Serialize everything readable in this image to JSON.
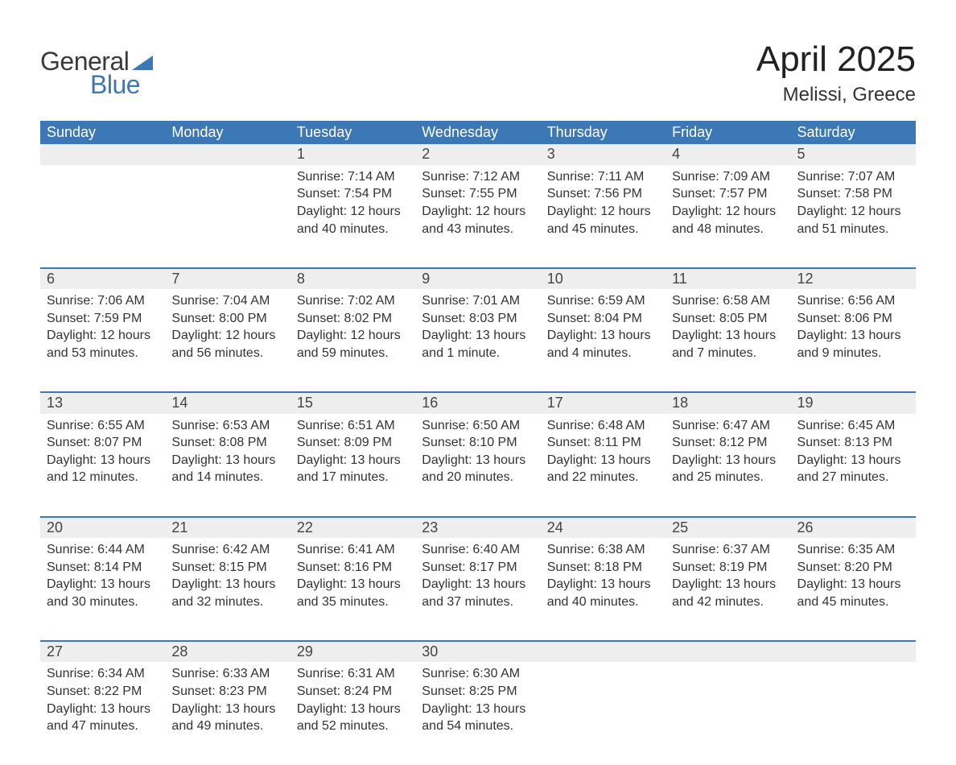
{
  "brand": {
    "word1": "General",
    "word2": "Blue"
  },
  "title": "April 2025",
  "location": "Melissi, Greece",
  "colors": {
    "header_bg": "#3b78b5",
    "header_text": "#ffffff",
    "daynum_bg": "#eeeeee",
    "divider": "#3b78b5",
    "body_text": "#333333",
    "page_bg": "#ffffff"
  },
  "typography": {
    "title_fontsize": 44,
    "location_fontsize": 24,
    "header_fontsize": 18,
    "daynum_fontsize": 18,
    "cell_fontsize": 16
  },
  "day_headers": [
    "Sunday",
    "Monday",
    "Tuesday",
    "Wednesday",
    "Thursday",
    "Friday",
    "Saturday"
  ],
  "weeks": [
    [
      null,
      null,
      {
        "n": "1",
        "sunrise": "Sunrise: 7:14 AM",
        "sunset": "Sunset: 7:54 PM",
        "daylight": "Daylight: 12 hours and 40 minutes."
      },
      {
        "n": "2",
        "sunrise": "Sunrise: 7:12 AM",
        "sunset": "Sunset: 7:55 PM",
        "daylight": "Daylight: 12 hours and 43 minutes."
      },
      {
        "n": "3",
        "sunrise": "Sunrise: 7:11 AM",
        "sunset": "Sunset: 7:56 PM",
        "daylight": "Daylight: 12 hours and 45 minutes."
      },
      {
        "n": "4",
        "sunrise": "Sunrise: 7:09 AM",
        "sunset": "Sunset: 7:57 PM",
        "daylight": "Daylight: 12 hours and 48 minutes."
      },
      {
        "n": "5",
        "sunrise": "Sunrise: 7:07 AM",
        "sunset": "Sunset: 7:58 PM",
        "daylight": "Daylight: 12 hours and 51 minutes."
      }
    ],
    [
      {
        "n": "6",
        "sunrise": "Sunrise: 7:06 AM",
        "sunset": "Sunset: 7:59 PM",
        "daylight": "Daylight: 12 hours and 53 minutes."
      },
      {
        "n": "7",
        "sunrise": "Sunrise: 7:04 AM",
        "sunset": "Sunset: 8:00 PM",
        "daylight": "Daylight: 12 hours and 56 minutes."
      },
      {
        "n": "8",
        "sunrise": "Sunrise: 7:02 AM",
        "sunset": "Sunset: 8:02 PM",
        "daylight": "Daylight: 12 hours and 59 minutes."
      },
      {
        "n": "9",
        "sunrise": "Sunrise: 7:01 AM",
        "sunset": "Sunset: 8:03 PM",
        "daylight": "Daylight: 13 hours and 1 minute."
      },
      {
        "n": "10",
        "sunrise": "Sunrise: 6:59 AM",
        "sunset": "Sunset: 8:04 PM",
        "daylight": "Daylight: 13 hours and 4 minutes."
      },
      {
        "n": "11",
        "sunrise": "Sunrise: 6:58 AM",
        "sunset": "Sunset: 8:05 PM",
        "daylight": "Daylight: 13 hours and 7 minutes."
      },
      {
        "n": "12",
        "sunrise": "Sunrise: 6:56 AM",
        "sunset": "Sunset: 8:06 PM",
        "daylight": "Daylight: 13 hours and 9 minutes."
      }
    ],
    [
      {
        "n": "13",
        "sunrise": "Sunrise: 6:55 AM",
        "sunset": "Sunset: 8:07 PM",
        "daylight": "Daylight: 13 hours and 12 minutes."
      },
      {
        "n": "14",
        "sunrise": "Sunrise: 6:53 AM",
        "sunset": "Sunset: 8:08 PM",
        "daylight": "Daylight: 13 hours and 14 minutes."
      },
      {
        "n": "15",
        "sunrise": "Sunrise: 6:51 AM",
        "sunset": "Sunset: 8:09 PM",
        "daylight": "Daylight: 13 hours and 17 minutes."
      },
      {
        "n": "16",
        "sunrise": "Sunrise: 6:50 AM",
        "sunset": "Sunset: 8:10 PM",
        "daylight": "Daylight: 13 hours and 20 minutes."
      },
      {
        "n": "17",
        "sunrise": "Sunrise: 6:48 AM",
        "sunset": "Sunset: 8:11 PM",
        "daylight": "Daylight: 13 hours and 22 minutes."
      },
      {
        "n": "18",
        "sunrise": "Sunrise: 6:47 AM",
        "sunset": "Sunset: 8:12 PM",
        "daylight": "Daylight: 13 hours and 25 minutes."
      },
      {
        "n": "19",
        "sunrise": "Sunrise: 6:45 AM",
        "sunset": "Sunset: 8:13 PM",
        "daylight": "Daylight: 13 hours and 27 minutes."
      }
    ],
    [
      {
        "n": "20",
        "sunrise": "Sunrise: 6:44 AM",
        "sunset": "Sunset: 8:14 PM",
        "daylight": "Daylight: 13 hours and 30 minutes."
      },
      {
        "n": "21",
        "sunrise": "Sunrise: 6:42 AM",
        "sunset": "Sunset: 8:15 PM",
        "daylight": "Daylight: 13 hours and 32 minutes."
      },
      {
        "n": "22",
        "sunrise": "Sunrise: 6:41 AM",
        "sunset": "Sunset: 8:16 PM",
        "daylight": "Daylight: 13 hours and 35 minutes."
      },
      {
        "n": "23",
        "sunrise": "Sunrise: 6:40 AM",
        "sunset": "Sunset: 8:17 PM",
        "daylight": "Daylight: 13 hours and 37 minutes."
      },
      {
        "n": "24",
        "sunrise": "Sunrise: 6:38 AM",
        "sunset": "Sunset: 8:18 PM",
        "daylight": "Daylight: 13 hours and 40 minutes."
      },
      {
        "n": "25",
        "sunrise": "Sunrise: 6:37 AM",
        "sunset": "Sunset: 8:19 PM",
        "daylight": "Daylight: 13 hours and 42 minutes."
      },
      {
        "n": "26",
        "sunrise": "Sunrise: 6:35 AM",
        "sunset": "Sunset: 8:20 PM",
        "daylight": "Daylight: 13 hours and 45 minutes."
      }
    ],
    [
      {
        "n": "27",
        "sunrise": "Sunrise: 6:34 AM",
        "sunset": "Sunset: 8:22 PM",
        "daylight": "Daylight: 13 hours and 47 minutes."
      },
      {
        "n": "28",
        "sunrise": "Sunrise: 6:33 AM",
        "sunset": "Sunset: 8:23 PM",
        "daylight": "Daylight: 13 hours and 49 minutes."
      },
      {
        "n": "29",
        "sunrise": "Sunrise: 6:31 AM",
        "sunset": "Sunset: 8:24 PM",
        "daylight": "Daylight: 13 hours and 52 minutes."
      },
      {
        "n": "30",
        "sunrise": "Sunrise: 6:30 AM",
        "sunset": "Sunset: 8:25 PM",
        "daylight": "Daylight: 13 hours and 54 minutes."
      },
      null,
      null,
      null
    ]
  ]
}
